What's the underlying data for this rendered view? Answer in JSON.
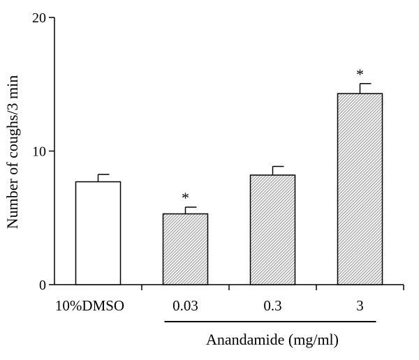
{
  "chart_data": {
    "type": "bar",
    "title": "",
    "xlabel": "",
    "ylabel": "Number of coughs/3 min",
    "ylim": [
      0,
      20
    ],
    "yticks": [
      0,
      10,
      20
    ],
    "grid": false,
    "legend": "none",
    "categories": [
      "10%DMSO",
      "0.03",
      "0.3",
      "3"
    ],
    "values": [
      7.7,
      5.3,
      8.2,
      14.3
    ],
    "errors": [
      0.55,
      0.5,
      0.65,
      0.75
    ],
    "significance": [
      "",
      "*",
      "",
      "*"
    ],
    "bar_fills": [
      "plain",
      "hatched",
      "hatched",
      "hatched"
    ],
    "group_label": "Anandamide (mg/ml)",
    "group_span": [
      1,
      3
    ],
    "colors": {
      "axis": "#000000",
      "plain_fill": "#ffffff",
      "hatch": "#555555"
    }
  }
}
